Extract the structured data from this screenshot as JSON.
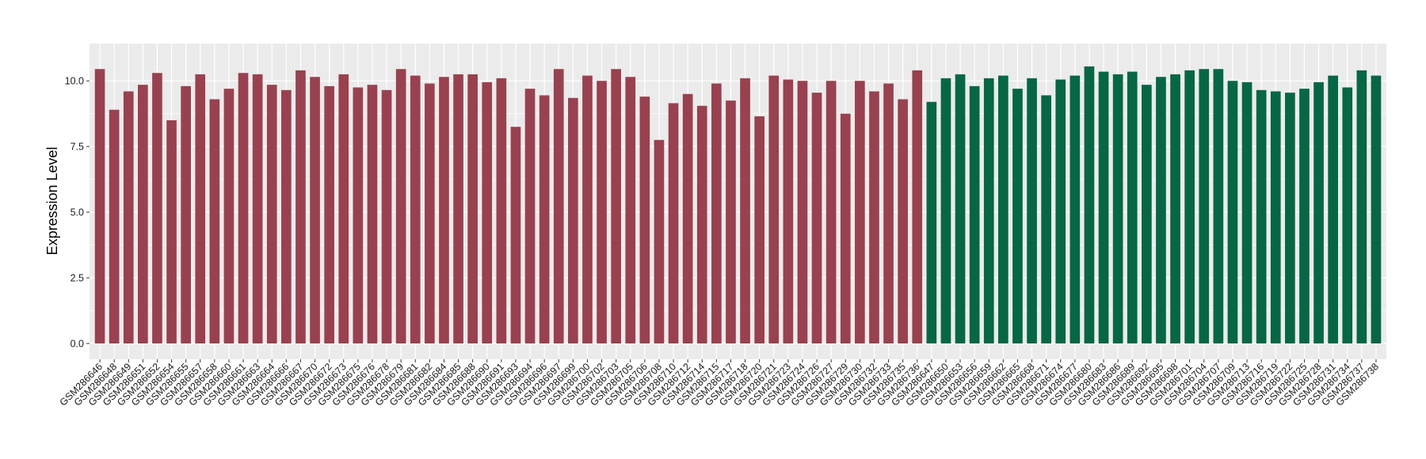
{
  "chart_data": {
    "type": "bar",
    "title": "",
    "xlabel": "",
    "ylabel": "Expression Level",
    "ylim": [
      0,
      11.0
    ],
    "yticks": [
      0.0,
      2.5,
      5.0,
      7.5,
      10.0
    ],
    "ytick_labels": [
      "0.0",
      "2.5",
      "5.0",
      "7.5",
      "10.0"
    ],
    "grid": true,
    "legend": "none",
    "colors": {
      "panel_bg": "#ebebeb",
      "grid": "#ffffff",
      "group1": "#9a4150",
      "group2": "#066744"
    },
    "categories": [
      "GSM286646",
      "GSM286648",
      "GSM286649",
      "GSM286651",
      "GSM286652",
      "GSM286654",
      "GSM286655",
      "GSM286657",
      "GSM286658",
      "GSM286660",
      "GSM286661",
      "GSM286663",
      "GSM286664",
      "GSM286666",
      "GSM286667",
      "GSM286670",
      "GSM286672",
      "GSM286673",
      "GSM286675",
      "GSM286676",
      "GSM286678",
      "GSM286679",
      "GSM286681",
      "GSM286682",
      "GSM286684",
      "GSM286685",
      "GSM286688",
      "GSM286690",
      "GSM286691",
      "GSM286693",
      "GSM286694",
      "GSM286696",
      "GSM286697",
      "GSM286699",
      "GSM286700",
      "GSM286702",
      "GSM286703",
      "GSM286705",
      "GSM286706",
      "GSM286708",
      "GSM286710",
      "GSM286712",
      "GSM286714",
      "GSM286715",
      "GSM286717",
      "GSM286718",
      "GSM286720",
      "GSM286721",
      "GSM286723",
      "GSM286724",
      "GSM286726",
      "GSM286727",
      "GSM286729",
      "GSM286730",
      "GSM286732",
      "GSM286733",
      "GSM286735",
      "GSM286736",
      "GSM286647",
      "GSM286650",
      "GSM286653",
      "GSM286656",
      "GSM286659",
      "GSM286662",
      "GSM286665",
      "GSM286668",
      "GSM286671",
      "GSM286674",
      "GSM286677",
      "GSM286680",
      "GSM286683",
      "GSM286686",
      "GSM286689",
      "GSM286692",
      "GSM286695",
      "GSM286698",
      "GSM286701",
      "GSM286704",
      "GSM286707",
      "GSM286709",
      "GSM286713",
      "GSM286716",
      "GSM286719",
      "GSM286722",
      "GSM286725",
      "GSM286728",
      "GSM286731",
      "GSM286734",
      "GSM286737",
      "GSM286738"
    ],
    "values": [
      10.45,
      8.9,
      9.6,
      9.85,
      10.3,
      8.5,
      9.8,
      10.25,
      9.3,
      9.7,
      10.3,
      10.25,
      9.85,
      9.65,
      10.4,
      10.15,
      9.8,
      10.25,
      9.75,
      9.85,
      9.65,
      10.45,
      10.2,
      9.9,
      10.15,
      10.25,
      10.25,
      9.95,
      10.1,
      8.25,
      9.7,
      9.45,
      10.45,
      9.35,
      10.2,
      10.0,
      10.45,
      10.15,
      9.4,
      7.75,
      9.15,
      9.5,
      9.05,
      9.9,
      9.25,
      10.1,
      8.65,
      10.2,
      10.05,
      10.0,
      9.55,
      10.0,
      8.75,
      10.0,
      9.6,
      9.9,
      9.3,
      10.4,
      9.2,
      10.1,
      10.25,
      9.8,
      10.1,
      10.2,
      9.7,
      10.1,
      9.45,
      10.05,
      10.2,
      10.55,
      10.35,
      10.25,
      10.35,
      9.85,
      10.15,
      10.25,
      10.4,
      10.45,
      10.45,
      10.0,
      9.95,
      9.65,
      9.6,
      9.55,
      9.7,
      9.95,
      10.2,
      9.75,
      10.4,
      10.2
    ],
    "group_split_index": 58
  }
}
